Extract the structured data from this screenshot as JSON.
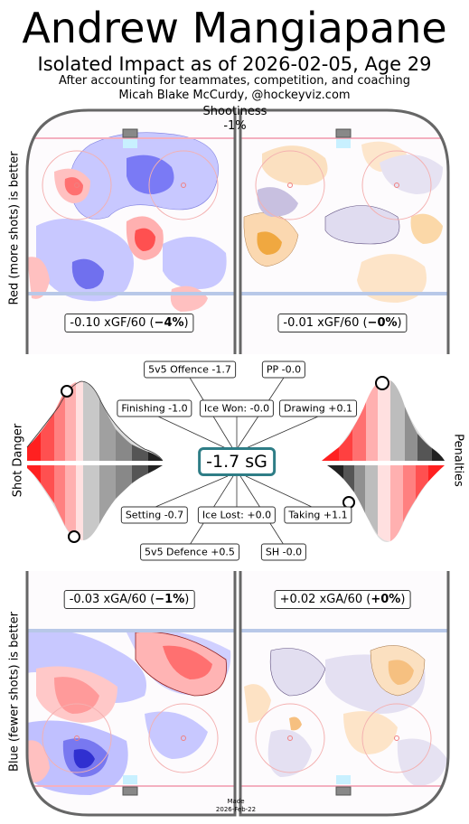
{
  "header": {
    "title": "Andrew Mangiapane",
    "subtitle": "Isolated Impact as of 2026-02-05, Age 29",
    "note_line1": "After accounting for teammates, competition, and coaching",
    "note_line2": "Micah Blake McCurdy, @hockeyviz.com"
  },
  "shootiness": {
    "label": "Shootiness",
    "value": "-1%"
  },
  "side_labels": {
    "top_left": "Red (more shots) is better",
    "bottom_left": "Blue (fewer shots) is better",
    "shot_danger": "Shot Danger",
    "penalties": "Penalties"
  },
  "offence_boxes": {
    "left": {
      "prefix": "-0.10 xGF/60 (",
      "bold": "−4%",
      "suffix": ")"
    },
    "right": {
      "prefix": "-0.01 xGF/60 (",
      "bold": "−0%",
      "suffix": ")"
    }
  },
  "defence_boxes": {
    "left": {
      "prefix": "-0.03 xGA/60 (",
      "bold": "−1%",
      "suffix": ")"
    },
    "right": {
      "prefix": "+0.02 xGA/60 (",
      "bold": "+0%",
      "suffix": ")"
    }
  },
  "center": {
    "total": "-1.7 sG",
    "components": {
      "offence_5v5": "5v5 Offence -1.7",
      "pp": "PP -0.0",
      "finishing": "Finishing -1.0",
      "ice_won": "Ice Won: -0.0",
      "drawing": "Drawing +0.1",
      "setting": "Setting -0.7",
      "ice_lost": "Ice Lost: +0.0",
      "taking": "Taking +1.1",
      "defence_5v5": "5v5 Defence +0.5",
      "sh": "SH -0.0"
    }
  },
  "footer": {
    "made_label": "Made",
    "made_date": "2026-Feb-22"
  },
  "colors": {
    "red": "#ff2020",
    "blue": "#3030e0",
    "orange": "#f0a030",
    "purple": "#8060b0",
    "rink_line": "#666666",
    "teal_border": "#2e7d86"
  },
  "chart_data": {
    "type": "heatmap",
    "description_panels": [
      "offence-5v5",
      "offence-special",
      "defence-5v5",
      "defence-special"
    ],
    "xgf60": [
      -0.1,
      -0.01
    ],
    "xgf_pct": [
      -4,
      0
    ],
    "xga60": [
      -0.03,
      0.02
    ],
    "xga_pct": [
      -1,
      0
    ],
    "shootiness_pct": -1,
    "sG_total": -1.7,
    "sG_components": {
      "5v5 Offence": -1.7,
      "PP": -0.0,
      "Finishing": -1.0,
      "Ice Won": -0.0,
      "Drawing": 0.1,
      "Setting": -0.7,
      "Ice Lost": 0.0,
      "Taking": 1.1,
      "5v5 Defence": 0.5,
      "SH": -0.0
    }
  }
}
